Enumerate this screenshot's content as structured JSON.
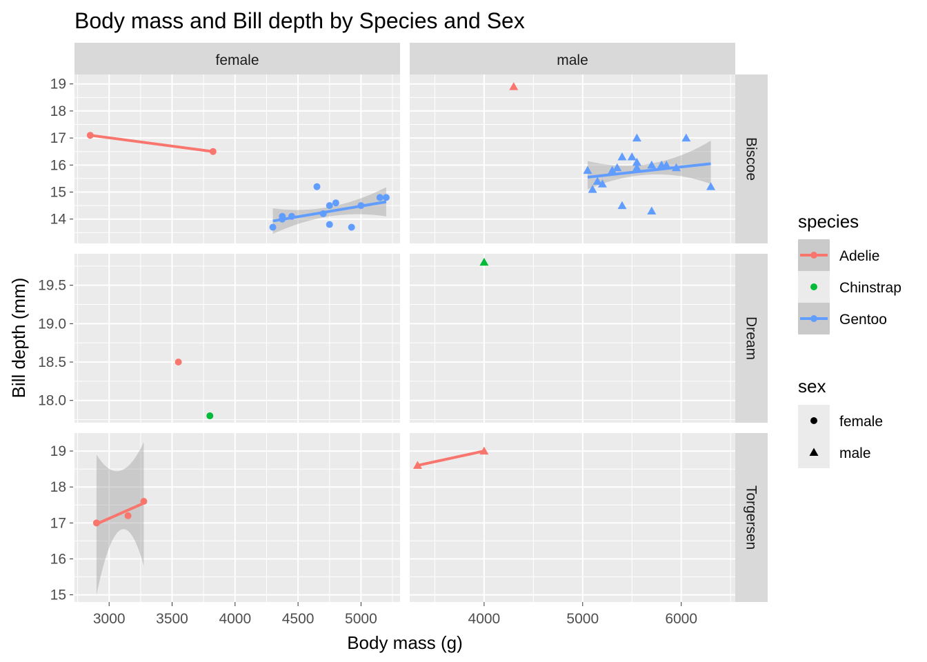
{
  "chart_data": {
    "type": "scatter",
    "title": "Body mass and Bill depth by Species and Sex",
    "xlabel": "Body mass (g)",
    "ylabel": "Bill depth (mm)",
    "facet_columns": [
      "female",
      "male"
    ],
    "facet_rows": [
      "Biscoe",
      "Dream",
      "Torgersen"
    ],
    "scales": "free",
    "panels": [
      {
        "col": "female",
        "row": "Biscoe",
        "xlim": [
          2725,
          5310
        ],
        "ylim": [
          13.1,
          19.35
        ],
        "xticks": [
          3000,
          3500,
          4000,
          4500,
          5000
        ],
        "yticks": [
          14,
          15,
          16,
          17,
          18,
          19
        ],
        "points": [
          {
            "species": "Adelie",
            "sex": "female",
            "x": 2850,
            "y": 17.1
          },
          {
            "species": "Adelie",
            "sex": "female",
            "x": 3825,
            "y": 16.5
          },
          {
            "species": "Gentoo",
            "sex": "female",
            "x": 4300,
            "y": 13.7
          },
          {
            "species": "Gentoo",
            "sex": "female",
            "x": 4375,
            "y": 14.0
          },
          {
            "species": "Gentoo",
            "sex": "female",
            "x": 4375,
            "y": 14.1
          },
          {
            "species": "Gentoo",
            "sex": "female",
            "x": 4450,
            "y": 14.1
          },
          {
            "species": "Gentoo",
            "sex": "female",
            "x": 4650,
            "y": 15.2
          },
          {
            "species": "Gentoo",
            "sex": "female",
            "x": 4700,
            "y": 14.2
          },
          {
            "species": "Gentoo",
            "sex": "female",
            "x": 4750,
            "y": 14.5
          },
          {
            "species": "Gentoo",
            "sex": "female",
            "x": 4750,
            "y": 13.8
          },
          {
            "species": "Gentoo",
            "sex": "female",
            "x": 4800,
            "y": 14.6
          },
          {
            "species": "Gentoo",
            "sex": "female",
            "x": 4925,
            "y": 13.7
          },
          {
            "species": "Gentoo",
            "sex": "female",
            "x": 5000,
            "y": 14.5
          },
          {
            "species": "Gentoo",
            "sex": "female",
            "x": 5150,
            "y": 14.8
          },
          {
            "species": "Gentoo",
            "sex": "female",
            "x": 5200,
            "y": 14.8
          }
        ],
        "fits": [
          {
            "species": "Adelie",
            "x": [
              2850,
              3825
            ],
            "y": [
              17.1,
              16.5
            ]
          },
          {
            "species": "Gentoo",
            "x": [
              4300,
              5200
            ],
            "y": [
              13.93,
              14.64
            ],
            "band": {
              "x": [
                4300,
                4750,
                5200
              ],
              "lower": [
                13.45,
                14.1,
                14.1
              ],
              "upper": [
                14.4,
                14.45,
                15.18
              ]
            }
          }
        ]
      },
      {
        "col": "male",
        "row": "Biscoe",
        "xlim": [
          3245,
          6548
        ],
        "ylim": [
          13.1,
          19.35
        ],
        "xticks": [
          4000,
          5000,
          6000
        ],
        "yticks": [
          14,
          15,
          16,
          17,
          18,
          19
        ],
        "points": [
          {
            "species": "Adelie",
            "sex": "male",
            "x": 4300,
            "y": 18.9
          },
          {
            "species": "Gentoo",
            "sex": "male",
            "x": 5050,
            "y": 15.8
          },
          {
            "species": "Gentoo",
            "sex": "male",
            "x": 5100,
            "y": 15.1
          },
          {
            "species": "Gentoo",
            "sex": "male",
            "x": 5150,
            "y": 15.4
          },
          {
            "species": "Gentoo",
            "sex": "male",
            "x": 5200,
            "y": 15.3
          },
          {
            "species": "Gentoo",
            "sex": "male",
            "x": 5300,
            "y": 15.8
          },
          {
            "species": "Gentoo",
            "sex": "male",
            "x": 5350,
            "y": 15.9
          },
          {
            "species": "Gentoo",
            "sex": "male",
            "x": 5400,
            "y": 16.3
          },
          {
            "species": "Gentoo",
            "sex": "male",
            "x": 5400,
            "y": 14.5
          },
          {
            "species": "Gentoo",
            "sex": "male",
            "x": 5500,
            "y": 16.3
          },
          {
            "species": "Gentoo",
            "sex": "male",
            "x": 5550,
            "y": 17.0
          },
          {
            "species": "Gentoo",
            "sex": "male",
            "x": 5550,
            "y": 16.1
          },
          {
            "species": "Gentoo",
            "sex": "male",
            "x": 5550,
            "y": 15.9
          },
          {
            "species": "Gentoo",
            "sex": "male",
            "x": 5700,
            "y": 16.0
          },
          {
            "species": "Gentoo",
            "sex": "male",
            "x": 5700,
            "y": 14.3
          },
          {
            "species": "Gentoo",
            "sex": "male",
            "x": 5800,
            "y": 16.0
          },
          {
            "species": "Gentoo",
            "sex": "male",
            "x": 5850,
            "y": 16.0
          },
          {
            "species": "Gentoo",
            "sex": "male",
            "x": 5950,
            "y": 15.9
          },
          {
            "species": "Gentoo",
            "sex": "male",
            "x": 6050,
            "y": 17.0
          },
          {
            "species": "Gentoo",
            "sex": "male",
            "x": 6300,
            "y": 15.2
          }
        ],
        "fits": [
          {
            "species": "Gentoo",
            "x": [
              5050,
              6300
            ],
            "y": [
              15.55,
              16.05
            ],
            "band": {
              "x": [
                5050,
                5700,
                6300
              ],
              "lower": [
                15.1,
                15.65,
                15.3
              ],
              "upper": [
                16.15,
                16.05,
                16.9
              ]
            }
          }
        ]
      },
      {
        "col": "female",
        "row": "Dream",
        "xlim": [
          2725,
          5310
        ],
        "ylim": [
          17.71,
          19.91
        ],
        "xticks": [
          3000,
          3500,
          4000,
          4500,
          5000
        ],
        "yticks": [
          18.0,
          18.5,
          19.0,
          19.5
        ],
        "ytick_labels": [
          "18.0",
          "18.5",
          "19.0",
          "19.5"
        ],
        "points": [
          {
            "species": "Adelie",
            "sex": "female",
            "x": 3550,
            "y": 18.5
          },
          {
            "species": "Chinstrap",
            "sex": "female",
            "x": 3800,
            "y": 17.8
          }
        ],
        "fits": []
      },
      {
        "col": "male",
        "row": "Dream",
        "xlim": [
          3245,
          6548
        ],
        "ylim": [
          17.71,
          19.91
        ],
        "xticks": [
          4000,
          5000,
          6000
        ],
        "yticks": [
          18.0,
          18.5,
          19.0,
          19.5
        ],
        "points": [
          {
            "species": "Chinstrap",
            "sex": "male",
            "x": 4000,
            "y": 19.8
          }
        ],
        "fits": []
      },
      {
        "col": "female",
        "row": "Torgersen",
        "xlim": [
          2725,
          5310
        ],
        "ylim": [
          14.8,
          19.5
        ],
        "xticks": [
          3000,
          3500,
          4000,
          4500,
          5000
        ],
        "yticks": [
          15,
          16,
          17,
          18,
          19
        ],
        "points": [
          {
            "species": "Adelie",
            "sex": "female",
            "x": 2900,
            "y": 17.0
          },
          {
            "species": "Adelie",
            "sex": "female",
            "x": 3150,
            "y": 17.2
          },
          {
            "species": "Adelie",
            "sex": "female",
            "x": 3275,
            "y": 17.6
          }
        ],
        "fits": [
          {
            "species": "Adelie",
            "x": [
              2900,
              3275
            ],
            "y": [
              16.97,
              17.55
            ],
            "band": {
              "x": [
                2900,
                3088,
                3275
              ],
              "lower": [
                15.0,
                16.8,
                15.8
              ],
              "upper": [
                18.9,
                18.45,
                19.25
              ]
            }
          }
        ]
      },
      {
        "col": "male",
        "row": "Torgersen",
        "xlim": [
          3245,
          6548
        ],
        "ylim": [
          14.8,
          19.5
        ],
        "xticks": [
          4000,
          5000,
          6000
        ],
        "yticks": [
          15,
          16,
          17,
          18,
          19
        ],
        "points": [
          {
            "species": "Adelie",
            "sex": "male",
            "x": 3325,
            "y": 18.6
          },
          {
            "species": "Adelie",
            "sex": "male",
            "x": 4000,
            "y": 19.0
          }
        ],
        "fits": [
          {
            "species": "Adelie",
            "x": [
              3325,
              4000
            ],
            "y": [
              18.6,
              19.0
            ]
          }
        ]
      }
    ],
    "legend": {
      "position": "right",
      "species": {
        "title": "species",
        "entries": [
          "Adelie",
          "Chinstrap",
          "Gentoo"
        ]
      },
      "sex": {
        "title": "sex",
        "entries": [
          "female",
          "male"
        ]
      }
    },
    "colors": {
      "Adelie": "#F8766D",
      "Chinstrap": "#00BA38",
      "Gentoo": "#619CFF"
    },
    "shapes": {
      "female": "circle",
      "male": "triangle"
    },
    "grid": true
  }
}
